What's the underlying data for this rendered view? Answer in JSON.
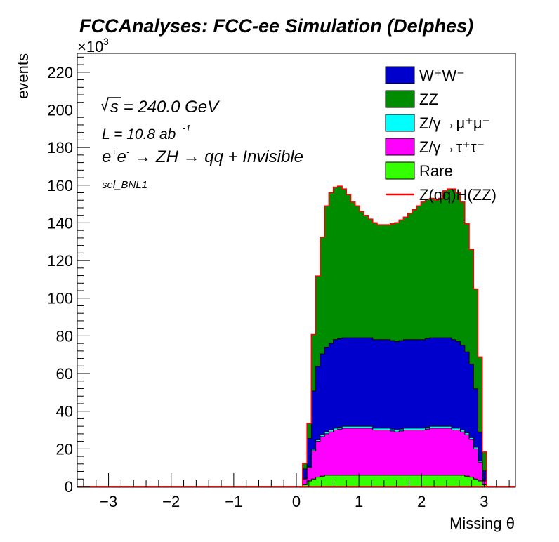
{
  "figure": {
    "title": "FCCAnalyses: FCC-ee Simulation (Delphes)",
    "y_multiplier": "×10",
    "y_multiplier_exp": "3",
    "annotations": {
      "sqrt_s": "s = 240.0 GeV",
      "lumi_prefix": "L = 10.8 ab",
      "lumi_exp": "-1",
      "process": {
        "a": "e",
        "a_sup": "+",
        "b": "e",
        "b_sup": "-",
        "arrow1": " → ZH ",
        "rest": "→ qq + Invisible"
      },
      "selection": "sel_BNL1"
    },
    "legend": [
      {
        "label": "W⁺W⁻",
        "color": "#0000cc",
        "style": "fill"
      },
      {
        "label": "ZZ",
        "color": "#008c00",
        "style": "fill"
      },
      {
        "label": "Z/γ→μ⁺μ⁻",
        "color": "#00ffff",
        "style": "fill"
      },
      {
        "label": "Z/γ→τ⁺τ⁻",
        "color": "#ff00ff",
        "style": "fill"
      },
      {
        "label": "Rare",
        "color": "#33ff00",
        "style": "fill"
      },
      {
        "label": "Z(qq)H(ZZ)",
        "color": "#ff0000",
        "style": "line"
      }
    ]
  },
  "chart_data": {
    "type": "area",
    "histogram": "stacked",
    "title": "FCCAnalyses: FCC-ee Simulation (Delphes)",
    "xlabel": "Missing θ",
    "ylabel": "events",
    "y_unit_scale": 1000,
    "xlim": [
      -3.5,
      3.5
    ],
    "ylim": [
      0,
      230
    ],
    "xticks": [
      -3,
      -2,
      -1,
      0,
      1,
      2,
      3
    ],
    "yticks": [
      0,
      20,
      40,
      60,
      80,
      100,
      120,
      140,
      160,
      180,
      200,
      220
    ],
    "bin_edges": [
      0.1,
      0.17,
      0.24,
      0.31,
      0.38,
      0.45,
      0.52,
      0.59,
      0.66,
      0.73,
      0.8,
      0.87,
      0.94,
      1.01,
      1.08,
      1.15,
      1.22,
      1.29,
      1.36,
      1.43,
      1.5,
      1.57,
      1.64,
      1.71,
      1.78,
      1.85,
      1.92,
      1.99,
      2.06,
      2.13,
      2.2,
      2.27,
      2.34,
      2.41,
      2.48,
      2.55,
      2.62,
      2.69,
      2.76,
      2.83,
      2.9,
      2.97,
      3.04
    ],
    "series": [
      {
        "name": "Rare",
        "color": "#33ff00",
        "values": [
          1,
          3,
          4,
          5,
          5.5,
          6,
          6,
          6,
          6,
          6,
          6,
          6,
          6,
          6,
          6,
          6,
          6,
          6,
          6,
          6,
          6,
          6,
          6,
          6,
          6,
          6,
          6,
          6,
          6,
          6,
          6,
          6,
          6,
          6,
          6,
          6,
          6,
          5.5,
          5,
          4,
          3,
          1
        ]
      },
      {
        "name": "Z/γ→τ⁺τ⁻",
        "color": "#ff00ff",
        "values": [
          3,
          7,
          15,
          19,
          21,
          22,
          23,
          24,
          24.5,
          25,
          25,
          25,
          25,
          25,
          25,
          25,
          24,
          24,
          24,
          24,
          23.5,
          23,
          23.5,
          24,
          24,
          24,
          24,
          24,
          24.5,
          25,
          25,
          25,
          25,
          25,
          24,
          24,
          23,
          22,
          20,
          16,
          10,
          2
        ]
      },
      {
        "name": "Z/γ→μ⁺μ⁻",
        "color": "#00ffff",
        "values": [
          0.3,
          0.5,
          0.7,
          0.8,
          0.9,
          1,
          1,
          1,
          1,
          1,
          1,
          1,
          1,
          1,
          1,
          1,
          1,
          1,
          1,
          1,
          1,
          1,
          1,
          1,
          1,
          1,
          1,
          1,
          1,
          1,
          1,
          1,
          1,
          1,
          1,
          1,
          1,
          1,
          1,
          0.9,
          0.8,
          0.3
        ]
      },
      {
        "name": "W⁺W⁻",
        "color": "#0000cc",
        "values": [
          5,
          15,
          31,
          39,
          43,
          45,
          46,
          47,
          47,
          47,
          47,
          47,
          47,
          47,
          47,
          47,
          47,
          47,
          47,
          47,
          47,
          47,
          47,
          47,
          47,
          47,
          47,
          47,
          47,
          47,
          47,
          47,
          47,
          47,
          47,
          46,
          45,
          43,
          39,
          31,
          15,
          5
        ]
      },
      {
        "name": "ZZ",
        "color": "#008c00",
        "values": [
          3,
          8,
          30,
          48,
          62,
          75,
          80,
          81,
          81,
          79,
          76,
          72,
          70,
          67,
          65,
          63,
          62,
          61,
          61,
          61,
          62,
          63,
          64,
          65,
          67,
          69,
          71,
          73,
          74,
          74,
          73,
          74,
          78,
          79,
          80,
          79,
          76,
          68,
          61,
          53,
          40,
          10
        ]
      }
    ],
    "signal": {
      "name": "Z(qq)H(ZZ)",
      "color": "#ff0000",
      "style": "line"
    }
  }
}
